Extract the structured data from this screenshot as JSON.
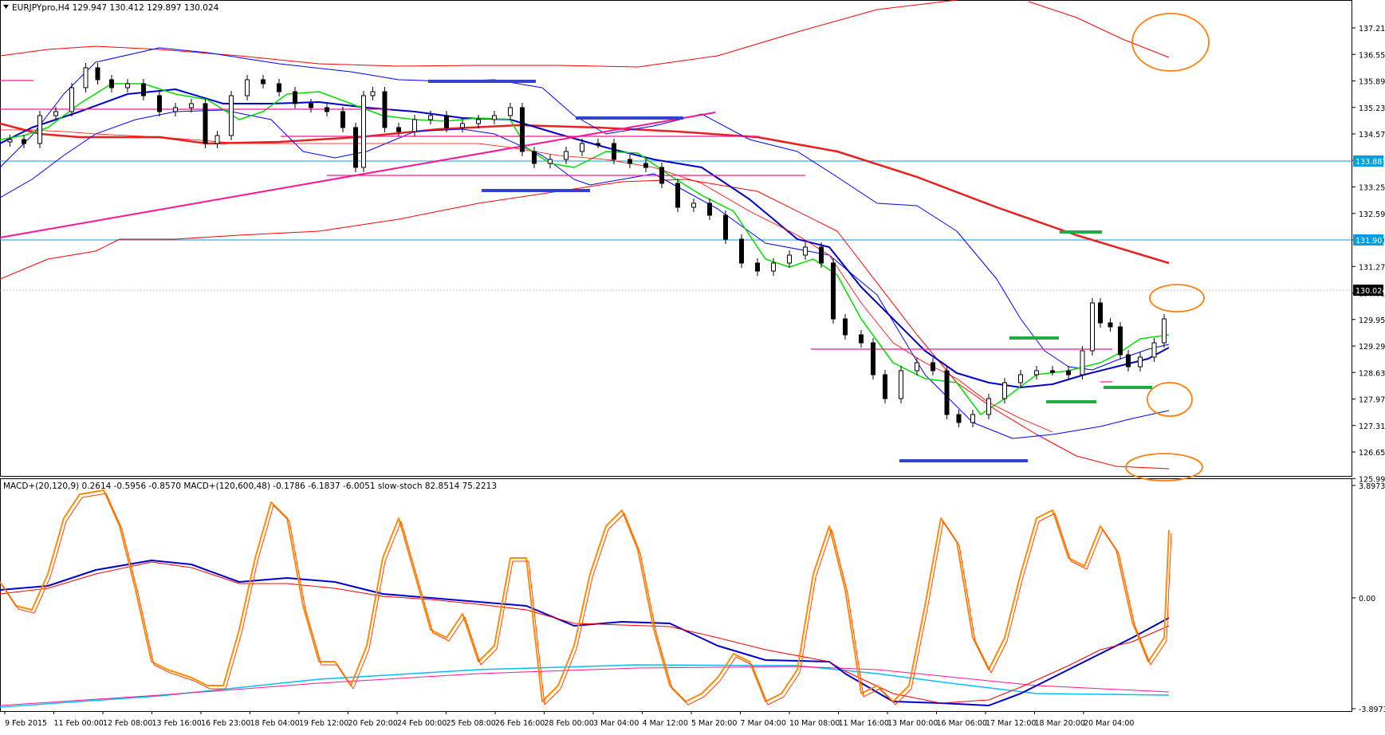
{
  "main": {
    "header": "EURJPYpro,H4  129.947 130.412 129.897 130.024",
    "price_labels": [
      "137.215",
      "136.555",
      "135.895",
      "135.235",
      "134.575",
      "133.915",
      "133.255",
      "132.595",
      "131.935",
      "131.275",
      "130.615",
      "129.955",
      "129.295",
      "128.635",
      "127.975",
      "127.315",
      "126.655",
      "125.995"
    ],
    "current_price": "130.024",
    "level_tags": [
      "133.887",
      "131.901"
    ],
    "colors": {
      "bg": "#ffffff",
      "grid": "#000000",
      "ma_long": "#e8211e",
      "bb_outer": "#ff0000",
      "bb_inner": "#0000ff",
      "ema_fast": "#00dd00",
      "ema_slow": "#0000cc",
      "level": "#00a0e0",
      "pink": "#ff1493",
      "green_mark": "#22aa44",
      "blue_mark": "#3344cc",
      "circle": "#ff7f0e"
    }
  },
  "sub": {
    "header": "MACD+(20,120,9) 0.2614 -0.5956 -0.8570  MACD+(120,600,48) -0.1786 -6.1837 -6.0051  slow-stoch 82.8514 75.2213",
    "scale_labels": [
      "3.8973",
      "0.00",
      "-3.8973"
    ],
    "colors": {
      "stoch_main": "#ff8c00",
      "stoch_signal": "#ff4500",
      "macd_fast": "#0000cc",
      "macd_fast_signal": "#ff0000",
      "macd_slow": "#00bfff",
      "macd_slow_signal": "#ff1493"
    }
  },
  "time_labels": [
    "9 Feb 2015",
    "11 Feb 00:00",
    "12 Feb 08:00",
    "13 Feb 16:00",
    "16 Feb 23:00",
    "18 Feb 04:00",
    "19 Feb 12:00",
    "20 Feb 20:00",
    "24 Feb 00:00",
    "25 Feb 08:00",
    "26 Feb 16:00",
    "28 Feb 00:00",
    "3 Mar 04:00",
    "4 Mar 12:00",
    "5 Mar 20:00",
    "7 Mar 04:00",
    "10 Mar 08:00",
    "11 Mar 16:00",
    "13 Mar 00:00",
    "16 Mar 06:00",
    "17 Mar 12:00",
    "18 Mar 20:00",
    "20 Mar 04:00"
  ]
}
